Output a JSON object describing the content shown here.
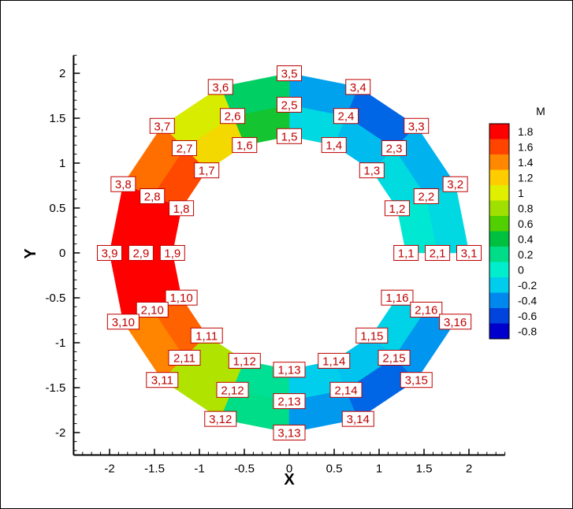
{
  "chart_data": {
    "type": "contour",
    "xlabel": "X",
    "ylabel": "Y",
    "xlim": [
      -2.4,
      2.4
    ],
    "ylim": [
      -2.25,
      2.2
    ],
    "x_ticks": [
      -2,
      -1.5,
      -1,
      -0.5,
      0,
      0.5,
      1,
      1.5,
      2
    ],
    "x_tick_labels": [
      "-2",
      "-1.5",
      "-1",
      "-0.5",
      "0",
      "0.5",
      "1",
      "1.5",
      "2"
    ],
    "y_ticks": [
      2,
      1.5,
      1,
      0.5,
      0,
      -0.5,
      -1,
      -1.5,
      -2
    ],
    "y_tick_labels": [
      "2",
      "1.5",
      "1",
      "0.5",
      "0",
      "-0.5",
      "-1",
      "-1.5",
      "-2"
    ],
    "variable": "M",
    "colorbar_levels": [
      1.8,
      1.6,
      1.4,
      1.2,
      1,
      0.8,
      0.6,
      0.4,
      0.2,
      0,
      -0.2,
      -0.4,
      -0.6,
      -0.8
    ],
    "colorbar_labels": [
      "1.8",
      "1.6",
      "1.4",
      "1.2",
      "1",
      "0.8",
      "0.6",
      "0.4",
      "0.2",
      "0",
      "-0.2",
      "-0.4",
      "-0.6",
      "-0.8"
    ],
    "colorbar_colors": [
      "#ff0000",
      "#ff4400",
      "#ff8800",
      "#ffcc00",
      "#e0ee00",
      "#a0e000",
      "#50d000",
      "#00c040",
      "#00dd88",
      "#00eecc",
      "#00ccee",
      "#0088ee",
      "#0044dd",
      "#0000cc"
    ],
    "grid": false,
    "legend_position": "right",
    "radii": [
      1.3,
      1.65,
      2.0
    ],
    "nodes": [
      {
        "label": "1,1",
        "i": 1,
        "j": 1,
        "m": 0.0
      },
      {
        "label": "1,2",
        "i": 1,
        "j": 2,
        "m": 0.05
      },
      {
        "label": "1,3",
        "i": 1,
        "j": 3,
        "m": -0.1
      },
      {
        "label": "1,4",
        "i": 1,
        "j": 4,
        "m": -0.2
      },
      {
        "label": "1,5",
        "i": 1,
        "j": 5,
        "m": 0.1
      },
      {
        "label": "1,6",
        "i": 1,
        "j": 6,
        "m": 1.0
      },
      {
        "label": "1,7",
        "i": 1,
        "j": 7,
        "m": 1.5
      },
      {
        "label": "1,8",
        "i": 1,
        "j": 8,
        "m": 1.85
      },
      {
        "label": "1,9",
        "i": 1,
        "j": 9,
        "m": 1.95
      },
      {
        "label": "1,10",
        "i": 1,
        "j": 10,
        "m": 1.8
      },
      {
        "label": "1,11",
        "i": 1,
        "j": 11,
        "m": 1.3
      },
      {
        "label": "1,12",
        "i": 1,
        "j": 12,
        "m": 0.4
      },
      {
        "label": "1,13",
        "i": 1,
        "j": 13,
        "m": -0.1
      },
      {
        "label": "1,14",
        "i": 1,
        "j": 14,
        "m": -0.1
      },
      {
        "label": "1,15",
        "i": 1,
        "j": 15,
        "m": -0.1
      },
      {
        "label": "1,16",
        "i": 1,
        "j": 16,
        "m": -0.1
      },
      {
        "label": "2,1",
        "i": 2,
        "j": 1,
        "m": -0.1
      },
      {
        "label": "2,2",
        "i": 2,
        "j": 2,
        "m": -0.1
      },
      {
        "label": "2,3",
        "i": 2,
        "j": 3,
        "m": -0.3
      },
      {
        "label": "2,4",
        "i": 2,
        "j": 4,
        "m": -0.4
      },
      {
        "label": "2,5",
        "i": 2,
        "j": 5,
        "m": 0.0
      },
      {
        "label": "2,6",
        "i": 2,
        "j": 6,
        "m": 0.7
      },
      {
        "label": "2,7",
        "i": 2,
        "j": 7,
        "m": 1.3
      },
      {
        "label": "2,8",
        "i": 2,
        "j": 8,
        "m": 1.7
      },
      {
        "label": "2,9",
        "i": 2,
        "j": 9,
        "m": 1.95
      },
      {
        "label": "2,10",
        "i": 2,
        "j": 10,
        "m": 1.75
      },
      {
        "label": "2,11",
        "i": 2,
        "j": 11,
        "m": 1.2
      },
      {
        "label": "2,12",
        "i": 2,
        "j": 12,
        "m": 0.5
      },
      {
        "label": "2,13",
        "i": 2,
        "j": 13,
        "m": -0.15
      },
      {
        "label": "2,14",
        "i": 2,
        "j": 14,
        "m": -0.4
      },
      {
        "label": "2,15",
        "i": 2,
        "j": 15,
        "m": -0.3
      },
      {
        "label": "2,16",
        "i": 2,
        "j": 16,
        "m": -0.15
      },
      {
        "label": "3,1",
        "i": 3,
        "j": 1,
        "m": -0.1
      },
      {
        "label": "3,2",
        "i": 3,
        "j": 2,
        "m": -0.2
      },
      {
        "label": "3,3",
        "i": 3,
        "j": 3,
        "m": -0.5
      },
      {
        "label": "3,4",
        "i": 3,
        "j": 4,
        "m": -0.8
      },
      {
        "label": "3,5",
        "i": 3,
        "j": 5,
        "m": -0.1
      },
      {
        "label": "3,6",
        "i": 3,
        "j": 6,
        "m": 0.6
      },
      {
        "label": "3,7",
        "i": 3,
        "j": 7,
        "m": 1.3
      },
      {
        "label": "3,8",
        "i": 3,
        "j": 8,
        "m": 1.6
      },
      {
        "label": "3,9",
        "i": 3,
        "j": 9,
        "m": 1.95
      },
      {
        "label": "3,10",
        "i": 3,
        "j": 10,
        "m": 1.6
      },
      {
        "label": "3,11",
        "i": 3,
        "j": 11,
        "m": 1.1
      },
      {
        "label": "3,12",
        "i": 3,
        "j": 12,
        "m": 0.6
      },
      {
        "label": "3,13",
        "i": 3,
        "j": 13,
        "m": -0.15
      },
      {
        "label": "3,14",
        "i": 3,
        "j": 14,
        "m": -0.7
      },
      {
        "label": "3,15",
        "i": 3,
        "j": 15,
        "m": -0.6
      },
      {
        "label": "3,16",
        "i": 3,
        "j": 16,
        "m": -0.4
      }
    ]
  }
}
